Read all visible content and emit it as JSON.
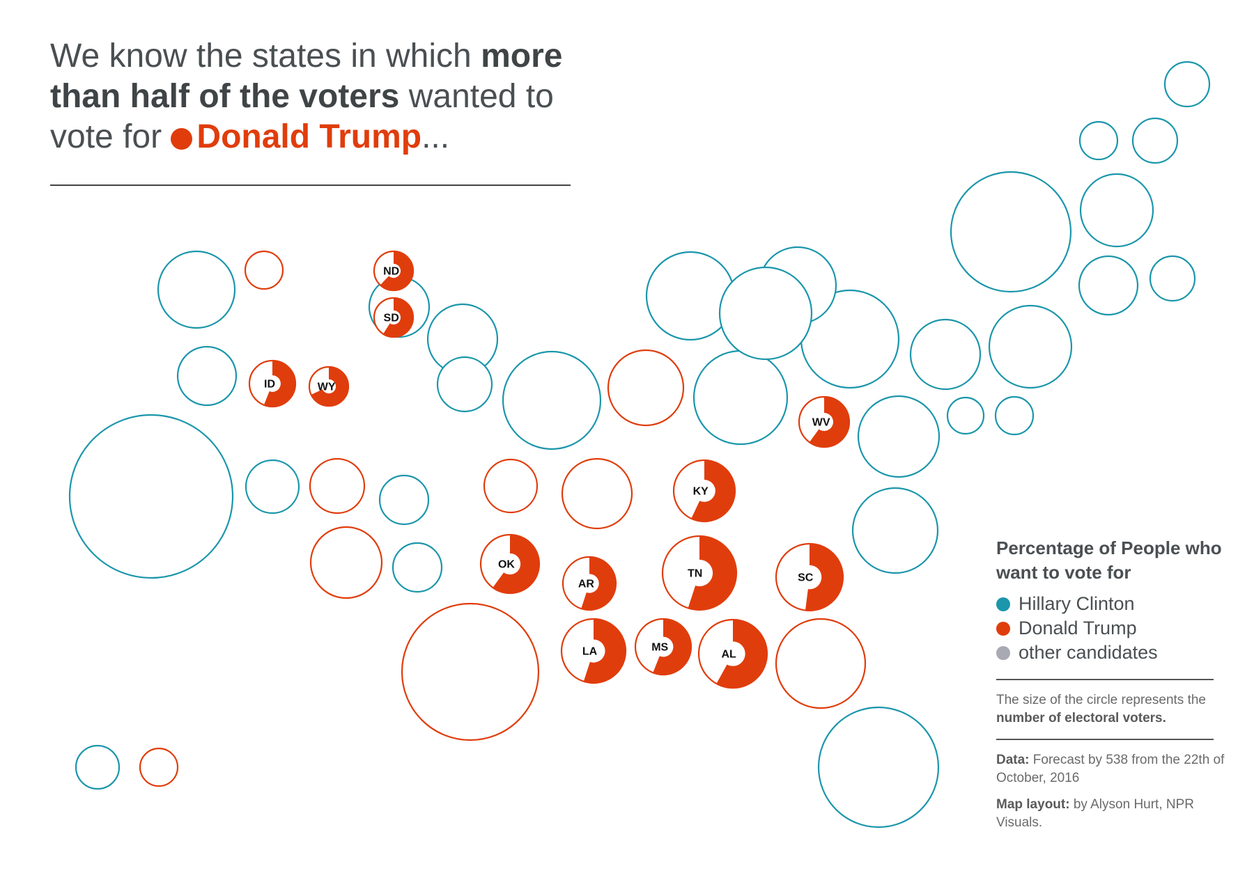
{
  "title": {
    "text_1": "We know the states in which ",
    "bold_1": "more than half of the voters",
    "text_2": " wanted to vote for ",
    "candidate": "Donald Trump",
    "ellipsis": "..."
  },
  "colors": {
    "clinton": "#1b96ab",
    "trump": "#e03d0c",
    "other": "#a9a9b3"
  },
  "legend": {
    "title": "Percentage of People who want to vote for",
    "items": [
      {
        "label": "Hillary Clinton",
        "color": "#1b96ab"
      },
      {
        "label": "Donald Trump",
        "color": "#e03d0c"
      },
      {
        "label": "other candidates",
        "color": "#a9a9b3"
      }
    ],
    "size_note_1": "The size of the circle represents the ",
    "size_note_bold": "number of electoral voters.",
    "data_label": "Data:",
    "data_text": " Forecast by 538 from the 22th of October, 2016",
    "layout_label": "Map layout:",
    "layout_text": " by Alyson Hurt, NPR Visuals."
  },
  "chart_data": {
    "type": "map",
    "encoding": "circle size = electoral votes; filled share = forecast Trump vote share; outline color = forecast winner",
    "states": [
      {
        "abbr": "",
        "winner": "clinton",
        "ev": 4
      },
      {
        "abbr": "",
        "winner": "clinton",
        "ev": 4
      },
      {
        "abbr": "",
        "winner": "clinton",
        "ev": 3
      },
      {
        "abbr": "",
        "winner": "clinton",
        "ev": 29
      },
      {
        "abbr": "",
        "winner": "clinton",
        "ev": 11
      },
      {
        "abbr": "",
        "winner": "clinton",
        "ev": 4
      },
      {
        "abbr": "",
        "winner": "clinton",
        "ev": 7
      },
      {
        "abbr": "",
        "winner": "clinton",
        "ev": 20
      },
      {
        "abbr": "",
        "winner": "clinton",
        "ev": 10
      },
      {
        "abbr": "",
        "winner": "clinton",
        "ev": 7
      },
      {
        "abbr": "",
        "winner": "clinton",
        "ev": 10
      },
      {
        "abbr": "",
        "winner": "clinton",
        "ev": 7
      },
      {
        "abbr": "",
        "winner": "clinton",
        "ev": 4
      },
      {
        "abbr": "",
        "winner": "clinton",
        "ev": 6
      },
      {
        "abbr": "",
        "winner": "clinton",
        "ev": 20
      },
      {
        "abbr": "",
        "winner": "clinton",
        "ev": 10
      },
      {
        "abbr": "",
        "winner": "clinton",
        "ev": 16
      },
      {
        "abbr": "",
        "winner": "clinton",
        "ev": 18
      },
      {
        "abbr": "",
        "winner": "clinton",
        "ev": 6
      },
      {
        "abbr": "",
        "winner": "clinton",
        "ev": 10
      },
      {
        "abbr": "",
        "winner": "clinton",
        "ev": 3
      },
      {
        "abbr": "",
        "winner": "clinton",
        "ev": 3
      },
      {
        "abbr": "",
        "winner": "clinton",
        "ev": 13
      },
      {
        "abbr": "",
        "winner": "clinton",
        "ev": 55
      },
      {
        "abbr": "",
        "winner": "clinton",
        "ev": 5
      },
      {
        "abbr": "",
        "winner": "clinton",
        "ev": 9
      },
      {
        "abbr": "",
        "winner": "clinton",
        "ev": 4
      },
      {
        "abbr": "",
        "winner": "clinton",
        "ev": 15
      },
      {
        "abbr": "",
        "winner": "clinton",
        "ev": 29
      },
      {
        "abbr": "",
        "winner": "clinton",
        "ev": 4
      },
      {
        "abbr": "",
        "winner": "trump",
        "ev": 3
      },
      {
        "abbr": "",
        "winner": "trump",
        "ev": 11
      },
      {
        "abbr": "",
        "winner": "trump",
        "ev": 6
      },
      {
        "abbr": "",
        "winner": "trump",
        "ev": 6
      },
      {
        "abbr": "",
        "winner": "trump",
        "ev": 10
      },
      {
        "abbr": "",
        "winner": "trump",
        "ev": 6
      },
      {
        "abbr": "",
        "winner": "trump",
        "ev": 38
      },
      {
        "abbr": "",
        "winner": "trump",
        "ev": 15
      },
      {
        "abbr": "",
        "winner": "trump",
        "ev": 3
      },
      {
        "abbr": "ND",
        "winner": "trump",
        "ev": 3,
        "trump_share": 0.62
      },
      {
        "abbr": "SD",
        "winner": "trump",
        "ev": 3,
        "trump_share": 0.59
      },
      {
        "abbr": "ID",
        "winner": "trump",
        "ev": 4,
        "trump_share": 0.56
      },
      {
        "abbr": "WY",
        "winner": "trump",
        "ev": 3,
        "trump_share": 0.68
      },
      {
        "abbr": "WV",
        "winner": "trump",
        "ev": 5,
        "trump_share": 0.6
      },
      {
        "abbr": "KY",
        "winner": "trump",
        "ev": 8,
        "trump_share": 0.57
      },
      {
        "abbr": "OK",
        "winner": "trump",
        "ev": 7,
        "trump_share": 0.6
      },
      {
        "abbr": "AR",
        "winner": "trump",
        "ev": 6,
        "trump_share": 0.55
      },
      {
        "abbr": "TN",
        "winner": "trump",
        "ev": 11,
        "trump_share": 0.55
      },
      {
        "abbr": "SC",
        "winner": "trump",
        "ev": 9,
        "trump_share": 0.52
      },
      {
        "abbr": "LA",
        "winner": "trump",
        "ev": 8,
        "trump_share": 0.55
      },
      {
        "abbr": "MS",
        "winner": "trump",
        "ev": 6,
        "trump_share": 0.56
      },
      {
        "abbr": "AL",
        "winner": "trump",
        "ev": 9,
        "trump_share": 0.58
      }
    ]
  }
}
